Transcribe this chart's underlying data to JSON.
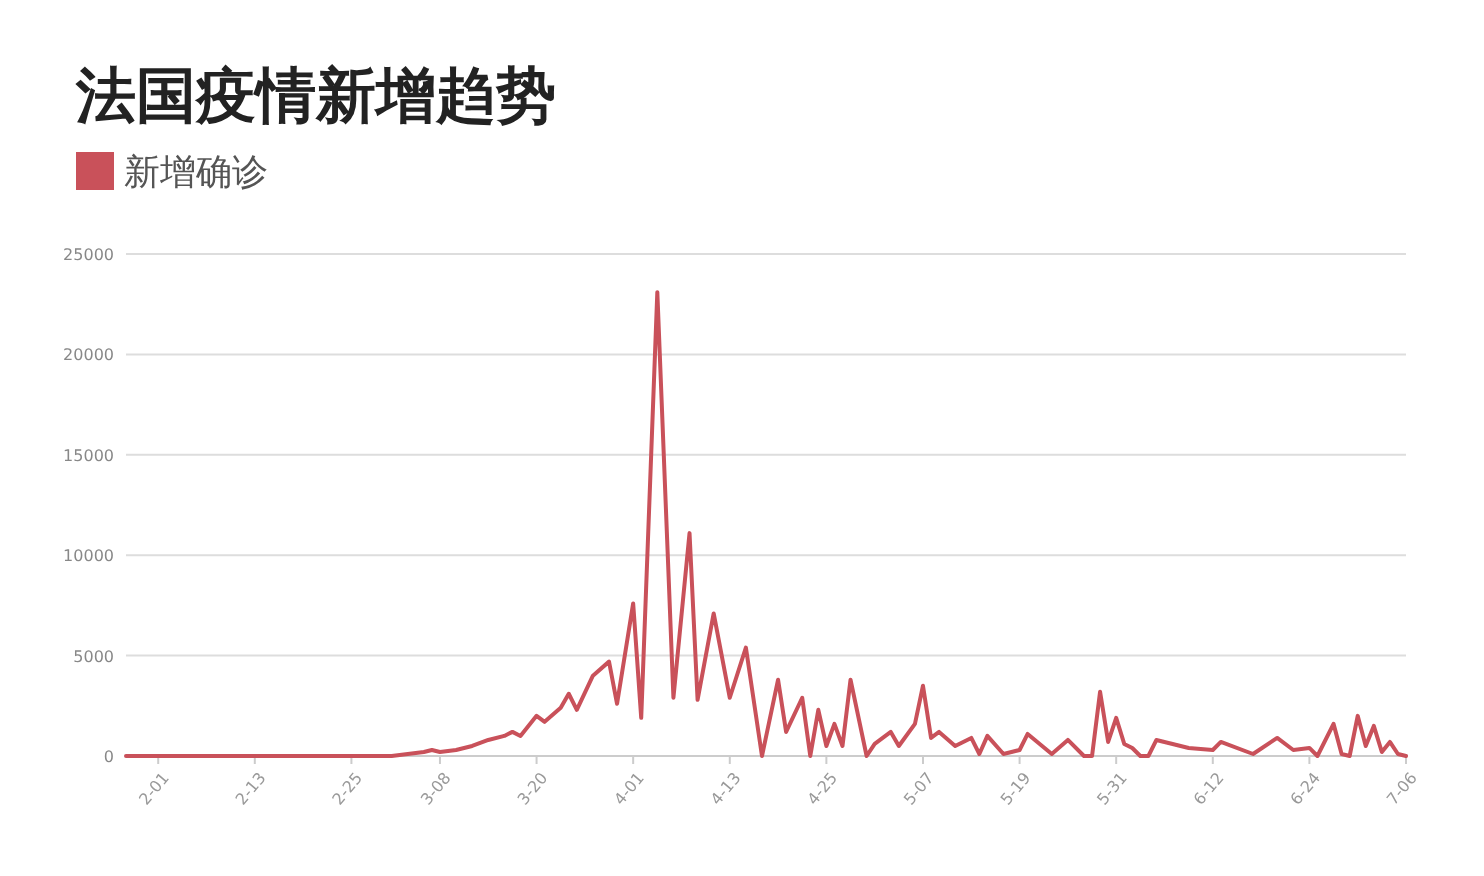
{
  "chart_data": {
    "type": "line",
    "title": "法国疫情新增趋势",
    "x": [
      "--01-28",
      "--02-01",
      "--02-13",
      "--02-25",
      "--03-02",
      "--03-06",
      "--03-07",
      "--03-08",
      "--03-10",
      "--03-12",
      "--03-14",
      "--03-16",
      "--03-17",
      "--03-18",
      "--03-20",
      "--03-21",
      "--03-23",
      "--03-24",
      "--03-25",
      "--03-27",
      "--03-29",
      "--03-30",
      "--04-01",
      "--04-02",
      "--04-04",
      "--04-06",
      "--04-08",
      "--04-09",
      "--04-11",
      "--04-13",
      "--04-15",
      "--04-17",
      "--04-19",
      "--04-20",
      "--04-22",
      "--04-23",
      "--04-24",
      "--04-25",
      "--04-26",
      "--04-27",
      "--04-28",
      "--04-30",
      "--05-01",
      "--05-03",
      "--05-04",
      "--05-06",
      "--05-07",
      "--05-08",
      "--05-09",
      "--05-11",
      "--05-13",
      "--05-14",
      "--05-15",
      "--05-17",
      "--05-19",
      "--05-20",
      "--05-23",
      "--05-25",
      "--05-27",
      "--05-28",
      "--05-29",
      "--05-30",
      "--05-31",
      "--06-01",
      "--06-02",
      "--06-03",
      "--06-04",
      "--06-05",
      "--06-09",
      "--06-12",
      "--06-13",
      "--06-17",
      "--06-20",
      "--06-22",
      "--06-24",
      "--06-25",
      "--06-27",
      "--06-28",
      "--06-29",
      "--06-30",
      "--07-01",
      "--07-02",
      "--07-03",
      "--07-04",
      "--07-05",
      "--07-06"
    ],
    "series": [
      {
        "name": "新增确诊",
        "color": "#c9515a",
        "values": [
          0,
          0,
          0,
          0,
          0,
          200,
          300,
          200,
          300,
          500,
          800,
          1000,
          1200,
          1000,
          2000,
          1700,
          2400,
          3100,
          2300,
          4000,
          4700,
          2600,
          7600,
          1900,
          23100,
          2900,
          11100,
          2800,
          7100,
          2900,
          5400,
          0,
          3800,
          1200,
          2900,
          0,
          2300,
          500,
          1600,
          500,
          3800,
          0,
          600,
          1200,
          500,
          1600,
          3500,
          900,
          1200,
          500,
          900,
          100,
          1000,
          100,
          300,
          1100,
          100,
          800,
          0,
          0,
          3200,
          700,
          1900,
          600,
          400,
          0,
          0,
          800,
          400,
          300,
          700,
          100,
          900,
          300,
          400,
          0,
          1600,
          100,
          0,
          2000,
          500,
          1500,
          200,
          700,
          100,
          0
        ]
      }
    ],
    "xlim": [
      "--01-28",
      "--07-06"
    ],
    "xticks": [
      {
        "value": "--02-01",
        "label": "2-01"
      },
      {
        "value": "--02-13",
        "label": "2-13"
      },
      {
        "value": "--02-25",
        "label": "2-25"
      },
      {
        "value": "--03-08",
        "label": "3-08"
      },
      {
        "value": "--03-20",
        "label": "3-20"
      },
      {
        "value": "--04-01",
        "label": "4-01"
      },
      {
        "value": "--04-13",
        "label": "4-13"
      },
      {
        "value": "--04-25",
        "label": "4-25"
      },
      {
        "value": "--05-07",
        "label": "5-07"
      },
      {
        "value": "--05-19",
        "label": "5-19"
      },
      {
        "value": "--05-31",
        "label": "5-31"
      },
      {
        "value": "--06-12",
        "label": "6-12"
      },
      {
        "value": "--06-24",
        "label": "6-24"
      },
      {
        "value": "--07-06",
        "label": "7-06"
      }
    ],
    "ylim": [
      0,
      25000
    ],
    "yticks": [
      0,
      5000,
      10000,
      15000,
      20000,
      25000
    ],
    "grid": "y",
    "legend": "top left",
    "line_style": "solid"
  }
}
